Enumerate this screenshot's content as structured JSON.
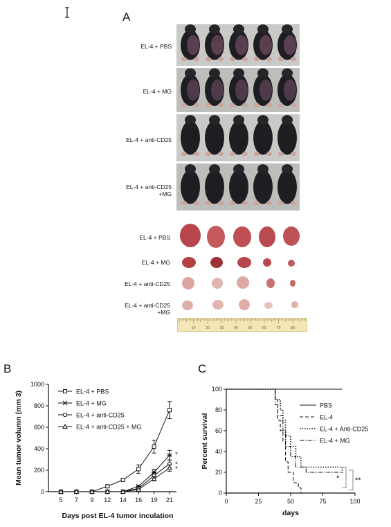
{
  "cursor_icon": "text-cursor-icon",
  "panel_a": {
    "letter": "A",
    "mouse_rows": [
      "EL-4 + PBS",
      "EL-4 + MG",
      "EL-4 + anti-CD25",
      "EL-4 + anti-CD25\n+MG"
    ],
    "tumor_rows": [
      "EL-4 + PBS",
      "EL-4 + MG",
      "EL-4 + anti-CD25",
      "EL-4 + anti-CD25\n+MG"
    ],
    "ruler_labels": [
      "10",
      "20",
      "30",
      "40",
      "50",
      "60",
      "70",
      "80"
    ]
  },
  "panel_b": {
    "letter": "B",
    "ylabel": "Mean tumor volumn (mm 3)",
    "xlabel": "Days post EL-4 tumor inculation",
    "y_ticks": [
      "0",
      "200",
      "400",
      "600",
      "800",
      "1000"
    ],
    "x_ticks": [
      "5",
      "7",
      "9",
      "12",
      "14",
      "16",
      "19",
      "21"
    ],
    "significance": [
      "*",
      "*",
      "*"
    ]
  },
  "panel_c": {
    "letter": "C",
    "ylabel": "Percent survival",
    "xlabel": "days",
    "y_ticks": [
      "0",
      "20",
      "40",
      "60",
      "80",
      "100"
    ],
    "x_ticks": [
      "0",
      "25",
      "50",
      "75",
      "100"
    ],
    "significance": [
      "*",
      "**"
    ]
  },
  "chart_data": [
    {
      "type": "line",
      "title": "",
      "xlabel": "Days post EL-4 tumor inculation",
      "ylabel": "Mean tumor volumn (mm 3)",
      "categories": [
        "5",
        "7",
        "9",
        "12",
        "14",
        "16",
        "19",
        "21"
      ],
      "ylim": [
        0,
        1000
      ],
      "legend": "top-left",
      "series": [
        {
          "name": "EL-4 + PBS",
          "marker": "square",
          "values": [
            0,
            0,
            0,
            50,
            110,
            210,
            420,
            760
          ],
          "err": [
            0,
            0,
            0,
            8,
            12,
            40,
            60,
            80
          ]
        },
        {
          "name": "EL-4 + MG",
          "marker": "star",
          "values": [
            0,
            0,
            0,
            0,
            0,
            50,
            180,
            340
          ],
          "err": [
            0,
            0,
            0,
            0,
            0,
            10,
            30,
            45
          ]
        },
        {
          "name": "EL-4 + anti-CD25",
          "marker": "circle",
          "values": [
            0,
            0,
            0,
            0,
            0,
            30,
            150,
            260
          ],
          "err": [
            0,
            0,
            0,
            0,
            0,
            8,
            25,
            35
          ]
        },
        {
          "name": "EL-4 + anti-CD25 + MG",
          "marker": "triangle",
          "values": [
            0,
            0,
            0,
            0,
            0,
            20,
            120,
            220
          ],
          "err": [
            0,
            0,
            0,
            0,
            0,
            6,
            20,
            30
          ]
        }
      ]
    },
    {
      "type": "line",
      "title": "",
      "xlabel": "days",
      "ylabel": "Percent survival",
      "xlim": [
        0,
        100
      ],
      "ylim": [
        0,
        100
      ],
      "legend": "top-right",
      "series": [
        {
          "name": "PBS",
          "style": "solid",
          "x": [
            0,
            90
          ],
          "y": [
            100,
            100
          ]
        },
        {
          "name": "EL-4",
          "style": "dashed",
          "steps": [
            [
              0,
              100
            ],
            [
              38,
              100
            ],
            [
              38,
              90
            ],
            [
              40,
              90
            ],
            [
              40,
              70
            ],
            [
              42,
              70
            ],
            [
              42,
              60
            ],
            [
              44,
              60
            ],
            [
              44,
              50
            ],
            [
              46,
              50
            ],
            [
              46,
              30
            ],
            [
              48,
              30
            ],
            [
              48,
              20
            ],
            [
              52,
              20
            ],
            [
              52,
              10
            ],
            [
              56,
              10
            ],
            [
              56,
              5
            ],
            [
              58,
              5
            ],
            [
              58,
              0
            ],
            [
              70,
              0
            ]
          ]
        },
        {
          "name": "EL-4 + Anti-CD25",
          "style": "dotted",
          "steps": [
            [
              0,
              100
            ],
            [
              38,
              100
            ],
            [
              38,
              90
            ],
            [
              42,
              90
            ],
            [
              42,
              80
            ],
            [
              44,
              80
            ],
            [
              44,
              70
            ],
            [
              46,
              70
            ],
            [
              46,
              55
            ],
            [
              50,
              55
            ],
            [
              50,
              45
            ],
            [
              54,
              45
            ],
            [
              54,
              35
            ],
            [
              58,
              35
            ],
            [
              58,
              25
            ],
            [
              90,
              25
            ],
            [
              90,
              18
            ]
          ]
        },
        {
          "name": "EL-4 + MG",
          "style": "dashdot",
          "steps": [
            [
              0,
              100
            ],
            [
              38,
              100
            ],
            [
              38,
              85
            ],
            [
              40,
              85
            ],
            [
              40,
              75
            ],
            [
              44,
              75
            ],
            [
              44,
              60
            ],
            [
              46,
              60
            ],
            [
              46,
              45
            ],
            [
              50,
              45
            ],
            [
              50,
              35
            ],
            [
              54,
              35
            ],
            [
              54,
              25
            ],
            [
              62,
              25
            ],
            [
              62,
              20
            ],
            [
              90,
              20
            ]
          ]
        }
      ]
    }
  ]
}
